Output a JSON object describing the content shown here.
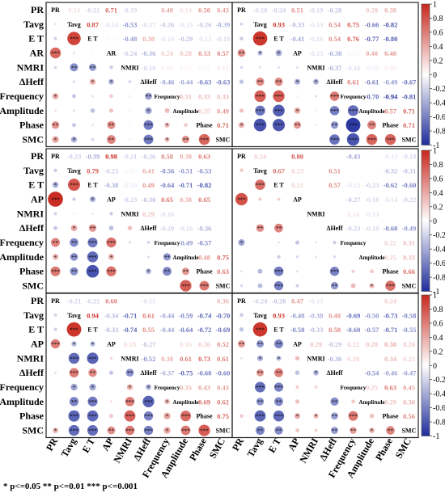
{
  "footnote": "* p<=0.05 ** p<=0.01 *** p<=0.001",
  "chart_data": {
    "type": "heatmap",
    "description_kind": "correlation matrices (upper triangle: coefficients, lower triangle: colored circles with significance stars)",
    "variables_rows": [
      "PR",
      "Tavg",
      "E T",
      "AR",
      "NMRI",
      "ΔHeff",
      "Frequency",
      "Amplitude",
      "Phase",
      "SMC"
    ],
    "variables_columns": [
      "PR",
      "Tavg",
      "E T",
      "AP",
      "NMRI",
      "ΔHeff",
      "Frequency",
      "Amplitude",
      "Phase",
      "SMC"
    ],
    "colorbar": {
      "min": -1,
      "max": 1,
      "ticks": [
        "1",
        "0.8",
        "0.6",
        "0.4",
        "0.2",
        "0",
        "-0.2",
        "-0.4",
        "-0.6",
        "-0.8",
        "-1"
      ],
      "low_color": "#1f2d9c",
      "mid_color": "#ffffff",
      "high_color": "#c8281e"
    },
    "panels": [
      {
        "rows": [
          "PR",
          "Tavg",
          "E T",
          "AR",
          "NMRI",
          "ΔHeff",
          "Frequency",
          "Amplitude",
          "Phase",
          "SMC"
        ],
        "diag": [
          "PR",
          "Tavg",
          "E T",
          "AR",
          "NMRI",
          "ΔHeff",
          "Frequency",
          "Amplitude",
          "Phase",
          "SMC"
        ],
        "upper": [
          [
            null,
            0.14,
            -0.21,
            0.71,
            -0.19,
            0.0,
            0.4,
            0.14,
            0.5,
            0.43
          ],
          [
            null,
            null,
            0.87,
            -0.14,
            -0.53,
            -0.17,
            -0.26,
            -0.15,
            -0.26,
            -0.39
          ],
          [
            null,
            null,
            null,
            -0.03,
            -0.48,
            0.38,
            -0.14,
            -0.29,
            -0.13,
            -0.19
          ],
          [
            null,
            null,
            null,
            null,
            -0.24,
            -0.36,
            0.24,
            0.28,
            0.53,
            0.57
          ],
          [
            null,
            null,
            null,
            null,
            null,
            -0.19,
            0.08,
            0.07,
            0.05,
            0.11
          ],
          [
            null,
            null,
            null,
            null,
            null,
            null,
            -0.46,
            -0.44,
            -0.63,
            -0.63
          ],
          [
            null,
            null,
            null,
            null,
            null,
            null,
            null,
            0.31,
            0.33,
            0.33
          ],
          [
            null,
            null,
            null,
            null,
            null,
            null,
            null,
            null,
            0.25,
            0.49
          ],
          [
            null,
            null,
            null,
            null,
            null,
            null,
            null,
            null,
            null,
            0.71
          ],
          [
            null,
            null,
            null,
            null,
            null,
            null,
            null,
            null,
            null,
            null
          ]
        ]
      },
      {
        "rows": [
          "PR",
          "Tavg",
          "E T",
          "AR",
          "NMRI",
          "ΔHeff",
          "Frequency",
          "Amplitude",
          "Phase",
          "SMC"
        ],
        "diag": [
          "PR",
          "Tavg",
          "E T",
          "AP",
          "NMRI",
          "ΔHeff",
          "Frequency",
          "Amplitude",
          "Phase",
          "SMC"
        ],
        "upper": [
          [
            null,
            -0.2,
            -0.24,
            0.51,
            -0.19,
            -0.28,
            0.0,
            0.28,
            0.38,
            null
          ],
          [
            null,
            null,
            0.93,
            -0.33,
            -0.14,
            0.54,
            0.75,
            -0.66,
            -0.82,
            null
          ],
          [
            null,
            null,
            null,
            -0.41,
            -0.16,
            0.54,
            0.76,
            -0.77,
            -0.8,
            null
          ],
          [
            null,
            null,
            null,
            null,
            -0.15,
            -0.38,
            0.05,
            0.4,
            0.48,
            null
          ],
          [
            null,
            null,
            null,
            null,
            null,
            -0.37,
            -0.16,
            -0.08,
            0.09,
            null
          ],
          [
            null,
            null,
            null,
            null,
            null,
            null,
            0.61,
            -0.61,
            -0.49,
            -0.67
          ],
          [
            null,
            null,
            null,
            null,
            null,
            null,
            null,
            -0.7,
            -0.94,
            -0.81
          ],
          [
            null,
            null,
            null,
            null,
            null,
            null,
            null,
            null,
            0.57,
            0.71
          ],
          [
            null,
            null,
            null,
            null,
            null,
            null,
            null,
            null,
            null,
            0.71
          ],
          [
            null,
            null,
            null,
            null,
            null,
            null,
            null,
            null,
            null,
            null
          ]
        ]
      },
      {
        "rows": [
          "PR",
          "Tavg",
          "E T",
          "AP",
          "NMRI",
          "ΔHeff",
          "Frequency",
          "Amplitude",
          "Phase",
          "SMC"
        ],
        "diag": [
          "PR",
          "Tavg",
          "E T",
          "AP",
          "NMRI",
          "ΔHeff",
          "Frequency",
          "Amplitude",
          "Phase",
          "SMC"
        ],
        "upper": [
          [
            null,
            -0.23,
            -0.39,
            0.98,
            -0.21,
            -0.26,
            0.58,
            0.38,
            0.63,
            null
          ],
          [
            null,
            null,
            0.79,
            -0.23,
            -0.05,
            0.41,
            -0.56,
            -0.51,
            -0.53,
            null
          ],
          [
            null,
            null,
            null,
            -0.38,
            -0.1,
            0.49,
            -0.64,
            -0.71,
            -0.82,
            null
          ],
          [
            null,
            null,
            null,
            null,
            -0.23,
            -0.3,
            0.65,
            0.38,
            0.65,
            null
          ],
          [
            null,
            null,
            null,
            null,
            null,
            0.29,
            -0.16,
            0.0,
            0.0,
            null
          ],
          [
            null,
            null,
            null,
            null,
            null,
            null,
            -0.2,
            -0.16,
            -0.36,
            null
          ],
          [
            null,
            null,
            null,
            null,
            null,
            null,
            null,
            -0.49,
            -0.57,
            null
          ],
          [
            null,
            null,
            null,
            null,
            null,
            null,
            null,
            null,
            0.48,
            0.75
          ],
          [
            null,
            null,
            null,
            null,
            null,
            null,
            null,
            null,
            null,
            0.63
          ],
          [
            null,
            null,
            null,
            null,
            null,
            null,
            null,
            null,
            null,
            null
          ]
        ]
      },
      {
        "rows": [
          "PR",
          "Tavg",
          "E T",
          "AP",
          "NMRI",
          "ΔHeff",
          "Frequency",
          "Amplitude",
          "Phase",
          "SMC"
        ],
        "diag": [
          "PR",
          "Tavg",
          "E T",
          "AP",
          "NMRI",
          "ΔHeff",
          "Frequency",
          "Amplitude",
          "Phase",
          "SMC"
        ],
        "upper": [
          [
            null,
            0.24,
            0.0,
            0.8,
            0.0,
            0.0,
            -0.43,
            0.0,
            -0.13,
            -0.18
          ],
          [
            null,
            null,
            0.67,
            0.23,
            0.0,
            0.51,
            0.0,
            0.0,
            -0.32,
            -0.31
          ],
          [
            null,
            null,
            null,
            0.21,
            0.0,
            0.57,
            -0.12,
            -0.23,
            -0.62,
            -0.6
          ],
          [
            null,
            null,
            null,
            null,
            0.0,
            0.0,
            -0.27,
            -0.18,
            -0.14,
            -0.22
          ],
          [
            null,
            null,
            null,
            null,
            null,
            0.0,
            0.14,
            -0.13,
            0.0,
            0.0
          ],
          [
            null,
            null,
            null,
            null,
            null,
            null,
            -0.23,
            -0.18,
            -0.6,
            -0.49
          ],
          [
            null,
            null,
            null,
            null,
            null,
            null,
            null,
            0.0,
            0.22,
            0.31
          ],
          [
            null,
            null,
            null,
            null,
            null,
            null,
            null,
            null,
            0.25,
            0.33
          ],
          [
            null,
            null,
            null,
            null,
            null,
            null,
            null,
            null,
            null,
            0.66
          ],
          [
            null,
            null,
            null,
            null,
            null,
            null,
            null,
            null,
            null,
            null
          ]
        ]
      },
      {
        "rows": [
          "PR",
          "Tavg",
          "E T",
          "AP",
          "NMRI",
          "ΔHeff",
          "Frequency",
          "Amplitude",
          "Phase",
          "SMC"
        ],
        "diag": [
          "PR",
          "Tavg",
          "E T",
          "AP",
          "NMRI",
          "ΔHeff",
          "Frequency",
          "Amplitude",
          "Phase",
          "SMC"
        ],
        "upper": [
          [
            null,
            -0.21,
            -0.22,
            0.6,
            0.0,
            -0.15,
            0.0,
            0.0,
            0.0,
            0.36
          ],
          [
            null,
            null,
            0.94,
            -0.34,
            -0.71,
            0.61,
            -0.44,
            -0.59,
            -0.74,
            -0.7
          ],
          [
            null,
            null,
            null,
            -0.33,
            -0.74,
            0.55,
            -0.44,
            -0.64,
            -0.72,
            -0.69
          ],
          [
            null,
            null,
            null,
            null,
            0.18,
            -0.27,
            0.0,
            0.16,
            0.26,
            0.52
          ],
          [
            null,
            null,
            null,
            null,
            null,
            -0.52,
            0.38,
            0.61,
            0.73,
            0.61
          ],
          [
            null,
            null,
            null,
            null,
            null,
            null,
            -0.37,
            -0.75,
            -0.6,
            -0.6
          ],
          [
            null,
            null,
            null,
            null,
            null,
            null,
            null,
            0.35,
            0.43,
            0.43
          ],
          [
            null,
            null,
            null,
            null,
            null,
            null,
            null,
            null,
            0.69,
            0.62
          ],
          [
            null,
            null,
            null,
            null,
            null,
            null,
            null,
            null,
            null,
            0.75
          ],
          [
            null,
            null,
            null,
            null,
            null,
            null,
            null,
            null,
            null,
            null
          ]
        ]
      },
      {
        "rows": [
          "PR",
          "Tavg",
          "E T",
          "AP",
          "NMRI",
          "ΔHeff",
          "Frequency",
          "Amplitude",
          "Phase",
          "SMC"
        ],
        "diag": [
          "PR",
          "Tavg",
          "E T",
          "AP",
          "NMRI",
          "ΔHeff",
          "Frequency",
          "Amplitude",
          "Phase",
          "SMC"
        ],
        "upper": [
          [
            null,
            -0.24,
            -0.28,
            0.47,
            -0.13,
            0.0,
            0.0,
            0.0,
            0.24,
            null
          ],
          [
            null,
            null,
            0.93,
            -0.48,
            -0.38,
            0.48,
            -0.69,
            -0.5,
            -0.73,
            -0.58
          ],
          [
            null,
            null,
            null,
            -0.58,
            -0.33,
            0.58,
            -0.6,
            -0.57,
            -0.71,
            -0.55
          ],
          [
            null,
            null,
            null,
            null,
            0.29,
            -0.29,
            0.22,
            0.28,
            0.38,
            0.26
          ],
          [
            null,
            null,
            null,
            null,
            null,
            -0.36,
            0.2,
            0.0,
            0.34,
            0.21
          ],
          [
            null,
            null,
            null,
            null,
            null,
            null,
            0.0,
            -0.54,
            -0.46,
            -0.47
          ],
          [
            null,
            null,
            null,
            null,
            null,
            null,
            null,
            0.25,
            0.63,
            0.45
          ],
          [
            null,
            null,
            null,
            null,
            null,
            null,
            null,
            null,
            0.29,
            0.36
          ],
          [
            null,
            null,
            null,
            null,
            null,
            null,
            null,
            null,
            null,
            0.56
          ],
          [
            null,
            null,
            null,
            null,
            null,
            null,
            null,
            null,
            null,
            null
          ]
        ]
      }
    ]
  }
}
